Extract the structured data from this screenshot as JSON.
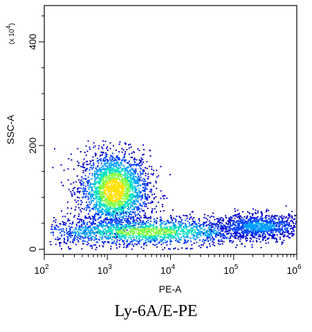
{
  "chart_data": {
    "type": "scatter",
    "title": "",
    "xlabel": "PE-A",
    "ylabel": "SSC-A",
    "y_multiplier_label": "(x 10",
    "y_multiplier_exp": "4",
    "y_multiplier_close": ")",
    "x_scale": "log",
    "xlim": [
      100,
      1000000
    ],
    "ylim": [
      -10,
      470
    ],
    "x_ticks": [
      {
        "base": "10",
        "exp": "2",
        "value": 100
      },
      {
        "base": "10",
        "exp": "3",
        "value": 1000
      },
      {
        "base": "10",
        "exp": "4",
        "value": 10000
      },
      {
        "base": "10",
        "exp": "5",
        "value": 100000
      },
      {
        "base": "10",
        "exp": "6",
        "value": 1000000
      }
    ],
    "y_ticks": [
      {
        "label": "0",
        "value": 0
      },
      {
        "label": "200",
        "value": 200
      },
      {
        "label": "400",
        "value": 400
      }
    ],
    "populations": [
      {
        "center_log_x": 3.1,
        "center_y": 115,
        "spread_log_x": 0.28,
        "spread_y": 38,
        "weight": 0.45
      },
      {
        "center_log_x": 3.6,
        "center_y": 35,
        "spread_log_x": 0.9,
        "spread_y": 14,
        "weight": 0.35
      },
      {
        "center_log_x": 5.4,
        "center_y": 45,
        "spread_log_x": 0.35,
        "spread_y": 12,
        "weight": 0.2
      }
    ],
    "density_colors": [
      "#0000cc",
      "#0040ff",
      "#00a0ff",
      "#00e0c0",
      "#80ff40",
      "#ffe000"
    ],
    "grid": false,
    "legend": "none"
  },
  "caption": "Ly-6A/E-PE"
}
